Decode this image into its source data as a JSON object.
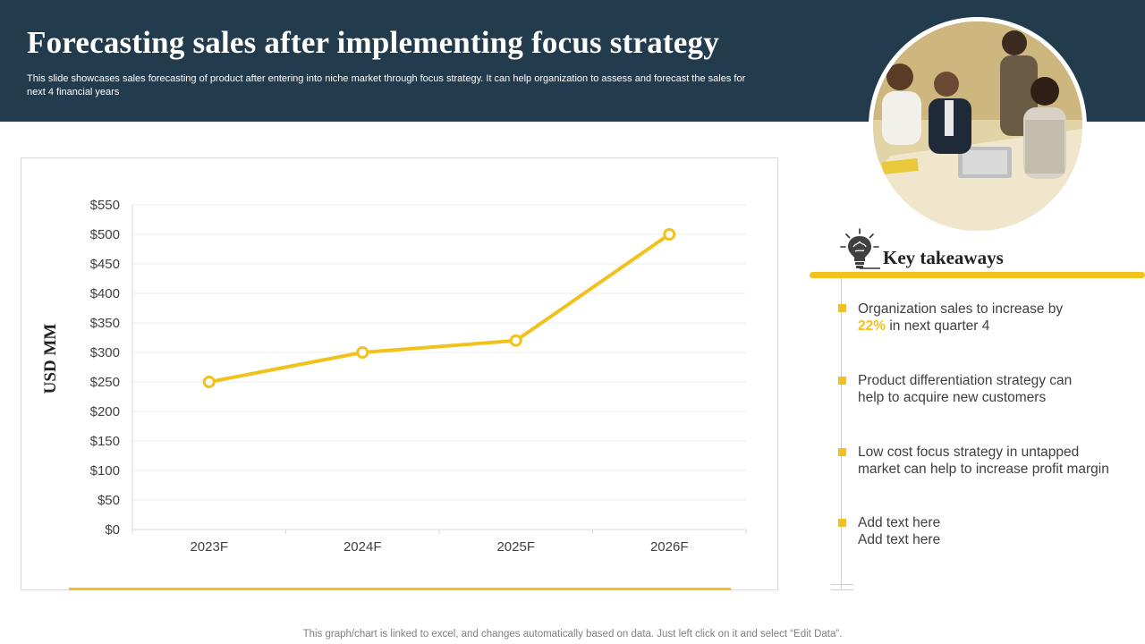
{
  "header": {
    "title": "Forecasting sales after implementing  focus strategy",
    "subtitle": "This slide showcases sales forecasting of product after entering into niche market through focus strategy. It can help organization to assess and forecast the sales for next 4 financial years"
  },
  "colors": {
    "header_bg": "#233c4d",
    "accent": "#f1c21b",
    "line": "#f1c21b"
  },
  "chart_data": {
    "type": "line",
    "categories": [
      "2023F",
      "2024F",
      "2025F",
      "2026F"
    ],
    "values": [
      250,
      300,
      320,
      500
    ],
    "ylabel": "USD MM",
    "xlabel": "",
    "ylim": [
      0,
      550
    ],
    "ytick_step": 50,
    "ytick_prefix": "$",
    "grid": true,
    "markers": "hollow-circle"
  },
  "takeaways": {
    "icon": "brain-lightbulb-icon",
    "title": "Key takeaways",
    "items": [
      {
        "line1": "Organization  sales to increase by",
        "highlight": "22%",
        "line2_rest": " in next  quarter 4"
      },
      {
        "line1": "Product differentiation strategy can",
        "line2": "help to acquire new customers"
      },
      {
        "line1": "Low cost focus strategy in untapped",
        "line2": "market can help to increase profit margin"
      },
      {
        "line1": "Add text here",
        "line2": "Add text here"
      }
    ]
  },
  "photo": {
    "icon": "team-meeting-photo"
  },
  "footnote": "This graph/chart is linked to excel,  and changes automatically based on data. Just left click on it and select “Edit Data”."
}
